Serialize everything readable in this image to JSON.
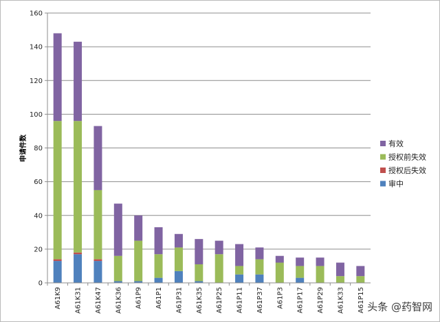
{
  "chart_data": {
    "type": "bar",
    "stacked": true,
    "categories": [
      "A61K9",
      "A61K31",
      "A61K47",
      "A61K36",
      "A61P9",
      "A61P1",
      "A61P31",
      "A61K35",
      "A61P25",
      "A61P11",
      "A61P37",
      "A61P3",
      "A61P17",
      "A61P29",
      "A61K33",
      "A61P15"
    ],
    "series": [
      {
        "name": "审中",
        "color": "#4f81bd",
        "values": [
          13,
          17,
          13,
          1,
          1,
          3,
          7,
          1,
          0,
          5,
          5,
          0,
          3,
          0,
          0,
          0
        ]
      },
      {
        "name": "授权后失效",
        "color": "#c0504d",
        "values": [
          1,
          1,
          1,
          0,
          0,
          0,
          0,
          0,
          0,
          0,
          0,
          0,
          0,
          0,
          0,
          0
        ]
      },
      {
        "name": "授权前失效",
        "color": "#9bbb59",
        "values": [
          82,
          78,
          41,
          15,
          24,
          14,
          14,
          10,
          17,
          5,
          9,
          12,
          7,
          10,
          4,
          4
        ]
      },
      {
        "name": "有效",
        "color": "#8064a2",
        "values": [
          52,
          47,
          38,
          31,
          15,
          16,
          8,
          15,
          8,
          13,
          7,
          4,
          5,
          5,
          8,
          6
        ]
      }
    ],
    "legend_order": [
      "有效",
      "授权前失效",
      "授权后失效",
      "审中"
    ],
    "legend_position": "right",
    "ylabel": "申请件数",
    "xlabel": "",
    "title": "",
    "ylim": [
      0,
      160
    ],
    "yticks": [
      0,
      20,
      40,
      60,
      80,
      100,
      120,
      140,
      160
    ],
    "grid": true
  },
  "watermark": {
    "text": "头条 @药智网"
  }
}
